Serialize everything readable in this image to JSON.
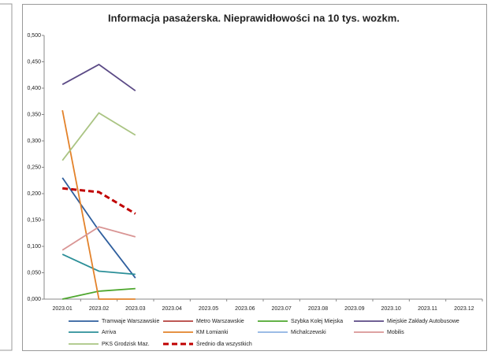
{
  "chart_data": {
    "type": "line",
    "title": "Informacja pasażerska. Nieprawidłowości na 10 tys. wozkm.",
    "categories": [
      "2023.01",
      "2023.02",
      "2023.03",
      "2023.04",
      "2023.05",
      "2023.06",
      "2023.07",
      "2023.08",
      "2023.09",
      "2023.10",
      "2023.11",
      "2023.12"
    ],
    "series": [
      {
        "name": "Tramwaje Warszawskie",
        "color": "#2f5f9e",
        "values": [
          0.23,
          0.13,
          0.04,
          null,
          null,
          null,
          null,
          null,
          null,
          null,
          null,
          null
        ]
      },
      {
        "name": "Metro Warszawskie",
        "color": "#b5403d",
        "values": [
          null,
          null,
          null,
          null,
          null,
          null,
          null,
          null,
          null,
          null,
          null,
          null
        ]
      },
      {
        "name": "Szybka Kolej Miejska",
        "color": "#4ea72e",
        "values": [
          0.0,
          0.015,
          0.02,
          null,
          null,
          null,
          null,
          null,
          null,
          null,
          null,
          null
        ]
      },
      {
        "name": "Miejskie Zakłady Autobusowe",
        "color": "#5b4a86",
        "values": [
          0.407,
          0.445,
          0.395,
          null,
          null,
          null,
          null,
          null,
          null,
          null,
          null,
          null
        ]
      },
      {
        "name": "Arriva",
        "color": "#2b8f98",
        "values": [
          0.085,
          0.053,
          0.047,
          null,
          null,
          null,
          null,
          null,
          null,
          null,
          null,
          null
        ]
      },
      {
        "name": "KM Łomianki",
        "color": "#e3822a",
        "values": [
          0.358,
          0.0,
          0.0,
          null,
          null,
          null,
          null,
          null,
          null,
          null,
          null,
          null
        ]
      },
      {
        "name": "Michalczewski",
        "color": "#8db3e2",
        "values": [
          null,
          null,
          null,
          null,
          null,
          null,
          null,
          null,
          null,
          null,
          null,
          null
        ]
      },
      {
        "name": "Mobilis",
        "color": "#d99594",
        "values": [
          0.093,
          0.137,
          0.118,
          null,
          null,
          null,
          null,
          null,
          null,
          null,
          null,
          null
        ]
      },
      {
        "name": "PKS Grodzisk Maz.",
        "color": "#aac483",
        "values": [
          0.263,
          0.353,
          0.311,
          null,
          null,
          null,
          null,
          null,
          null,
          null,
          null,
          null
        ]
      },
      {
        "name": "Średnio dla wszystkich",
        "color": "#c00000",
        "dashed": true,
        "values": [
          0.21,
          0.203,
          0.162,
          null,
          null,
          null,
          null,
          null,
          null,
          null,
          null,
          null
        ]
      }
    ],
    "ylim": [
      0,
      0.5
    ],
    "yticks": [
      {
        "value": 0,
        "label": "0,000"
      },
      {
        "value": 0.05,
        "label": "0,050"
      },
      {
        "value": 0.1,
        "label": "0,100"
      },
      {
        "value": 0.15,
        "label": "0,150"
      },
      {
        "value": 0.2,
        "label": "0,200"
      },
      {
        "value": 0.25,
        "label": "0,250"
      },
      {
        "value": 0.3,
        "label": "0,300"
      },
      {
        "value": 0.35,
        "label": "0,350"
      },
      {
        "value": 0.4,
        "label": "0,400"
      },
      {
        "value": 0.45,
        "label": "0,450"
      },
      {
        "value": 0.5,
        "label": "0,500"
      }
    ],
    "grid": false,
    "legend": "bottom"
  }
}
